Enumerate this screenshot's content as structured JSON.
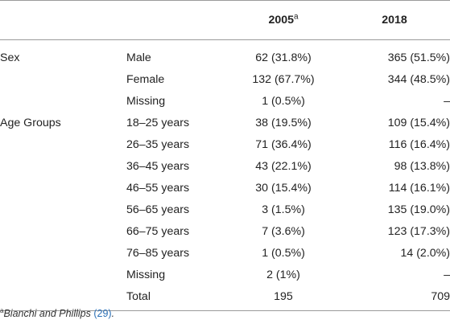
{
  "table": {
    "columns": [
      "",
      "",
      "2005",
      "2018"
    ],
    "header_footnote_marker": "a",
    "groups": [
      {
        "category": "Sex",
        "rows": [
          {
            "label": "Male",
            "v2005": "62 (31.8%)",
            "v2018": "365 (51.5%)"
          },
          {
            "label": "Female",
            "v2005": "132 (67.7%)",
            "v2018": "344 (48.5%)"
          },
          {
            "label": "Missing",
            "v2005": "1 (0.5%)",
            "v2018": "–"
          }
        ]
      },
      {
        "category": "Age Groups",
        "rows": [
          {
            "label": "18–25 years",
            "v2005": "38 (19.5%)",
            "v2018": "109 (15.4%)"
          },
          {
            "label": "26–35 years",
            "v2005": "71 (36.4%)",
            "v2018": "116 (16.4%)"
          },
          {
            "label": "36–45 years",
            "v2005": "43 (22.1%)",
            "v2018": "98 (13.8%)"
          },
          {
            "label": "46–55 years",
            "v2005": "30 (15.4%)",
            "v2018": "114 (16.1%)"
          },
          {
            "label": "56–65 years",
            "v2005": "3 (1.5%)",
            "v2018": "135 (19.0%)"
          },
          {
            "label": "66–75 years",
            "v2005": "7 (3.6%)",
            "v2018": "123 (17.3%)"
          },
          {
            "label": "76–85 years",
            "v2005": "1 (0.5%)",
            "v2018": "14 (2.0%)"
          },
          {
            "label": "Missing",
            "v2005": "2 (1%)",
            "v2018": "–"
          },
          {
            "label": "Total",
            "v2005": "195",
            "v2018": "709"
          }
        ]
      }
    ]
  },
  "footnote": {
    "marker": "a",
    "text": "Bianchi and Phillips",
    "citation": "(29)",
    "end": "."
  }
}
